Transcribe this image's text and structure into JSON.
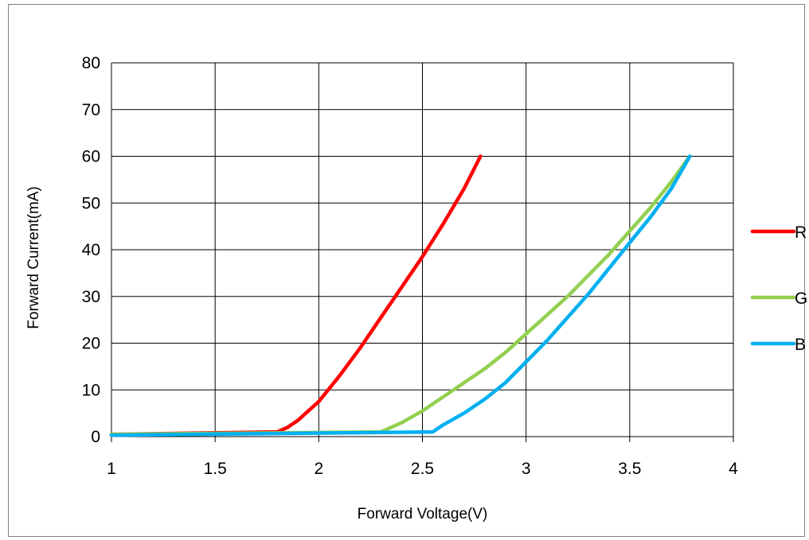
{
  "chart_data": {
    "type": "line",
    "title": "",
    "xlabel": "Forward Voltage(V)",
    "ylabel": "Forward Current(mA)",
    "xlim": [
      1,
      4
    ],
    "ylim": [
      0,
      80
    ],
    "x_ticks": [
      "1",
      "1.5",
      "2",
      "2.5",
      "3",
      "3.5",
      "4"
    ],
    "y_ticks": [
      "0",
      "10",
      "20",
      "30",
      "40",
      "50",
      "60",
      "70",
      "80"
    ],
    "grid": true,
    "legend_position": "right",
    "series": [
      {
        "name": "R",
        "color": "#ff0000",
        "points": [
          [
            1.0,
            0.5
          ],
          [
            1.8,
            1.0
          ],
          [
            1.85,
            2.0
          ],
          [
            1.9,
            3.5
          ],
          [
            2.0,
            7.5
          ],
          [
            2.1,
            13.0
          ],
          [
            2.2,
            19.0
          ],
          [
            2.3,
            25.5
          ],
          [
            2.4,
            32.0
          ],
          [
            2.5,
            38.5
          ],
          [
            2.6,
            45.5
          ],
          [
            2.7,
            53.0
          ],
          [
            2.78,
            60.0
          ]
        ]
      },
      {
        "name": "G",
        "color": "#92d050",
        "points": [
          [
            1.0,
            0.5
          ],
          [
            2.3,
            1.0
          ],
          [
            2.4,
            3.0
          ],
          [
            2.5,
            5.5
          ],
          [
            2.6,
            8.5
          ],
          [
            2.7,
            11.5
          ],
          [
            2.8,
            14.5
          ],
          [
            2.9,
            18.0
          ],
          [
            3.0,
            22.0
          ],
          [
            3.1,
            26.0
          ],
          [
            3.2,
            30.0
          ],
          [
            3.3,
            34.5
          ],
          [
            3.4,
            39.0
          ],
          [
            3.5,
            44.0
          ],
          [
            3.6,
            49.0
          ],
          [
            3.7,
            54.5
          ],
          [
            3.79,
            60.0
          ]
        ]
      },
      {
        "name": "B",
        "color": "#00b0f0",
        "points": [
          [
            1.0,
            0.3
          ],
          [
            2.55,
            1.0
          ],
          [
            2.6,
            2.5
          ],
          [
            2.7,
            5.0
          ],
          [
            2.8,
            8.0
          ],
          [
            2.9,
            11.5
          ],
          [
            3.0,
            16.0
          ],
          [
            3.1,
            20.5
          ],
          [
            3.2,
            25.5
          ],
          [
            3.3,
            30.5
          ],
          [
            3.4,
            36.0
          ],
          [
            3.5,
            41.5
          ],
          [
            3.6,
            47.0
          ],
          [
            3.7,
            53.0
          ],
          [
            3.79,
            60.0
          ]
        ]
      }
    ]
  }
}
